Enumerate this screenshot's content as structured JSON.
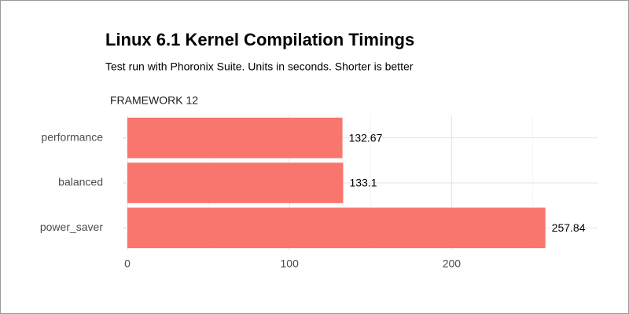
{
  "chart_data": {
    "type": "bar",
    "orientation": "horizontal",
    "title": "Linux 6.1 Kernel Compilation Timings",
    "subtitle": "Test run with Phoronix Suite. Units in seconds. Shorter is better",
    "facet_label": "FRAMEWORK 12",
    "categories": [
      "performance",
      "balanced",
      "power_saver"
    ],
    "values": [
      132.67,
      133.1,
      257.84
    ],
    "color": "#f8766d",
    "xlim": [
      0,
      290
    ],
    "xticks": [
      0,
      100,
      200
    ],
    "x_minor_ticks": [
      50,
      150,
      250
    ],
    "grid": true
  }
}
